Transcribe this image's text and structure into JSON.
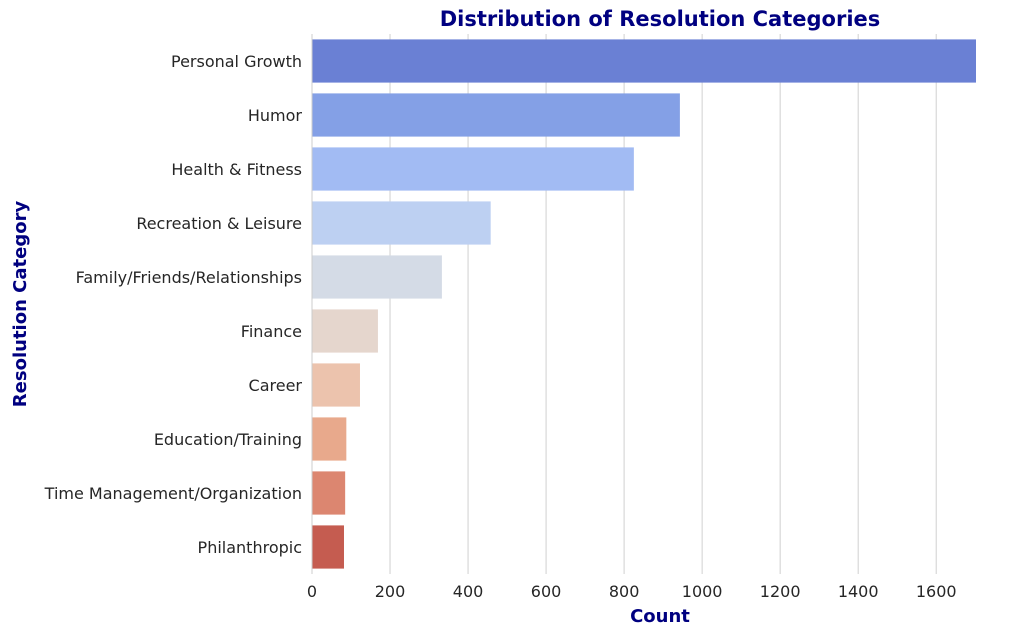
{
  "chart_data": {
    "type": "bar",
    "orientation": "horizontal",
    "title": "Distribution of Resolution Categories",
    "xlabel": "Count",
    "ylabel": "Resolution Category",
    "categories": [
      "Personal Growth",
      "Humor",
      "Health & Fitness",
      "Recreation & Leisure",
      "Family/Friends/Relationships",
      "Finance",
      "Career",
      "Education/Training",
      "Time Management/Organization",
      "Philanthropic"
    ],
    "values": [
      1702,
      943,
      825,
      458,
      333,
      169,
      123,
      88,
      85,
      82
    ],
    "xlim": [
      0,
      1702
    ],
    "xticks": [
      0,
      200,
      400,
      600,
      800,
      1000,
      1200,
      1400,
      1600
    ],
    "grid": "vertical",
    "colors": [
      "#6a80d4",
      "#84a0e6",
      "#a2bbf3",
      "#bdd0f2",
      "#d4dbe6",
      "#e5d6cd",
      "#ecc3ad",
      "#e8a98c",
      "#dc8670",
      "#c55c50"
    ],
    "title_color": "#000080",
    "label_color": "#000080"
  }
}
